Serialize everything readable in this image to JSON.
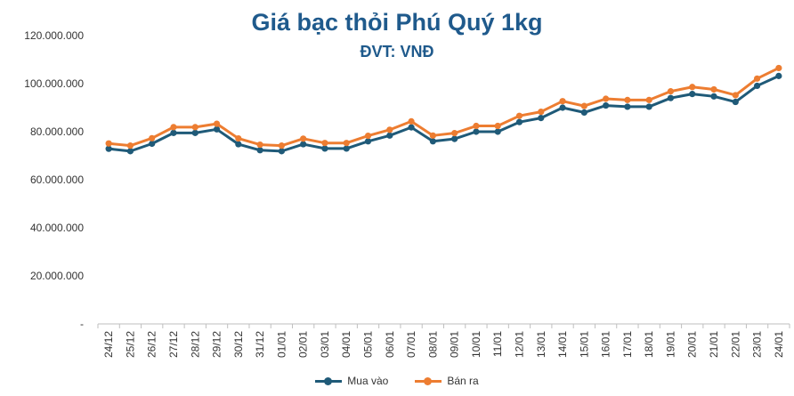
{
  "chart_data": {
    "type": "line",
    "title": "Giá bạc thỏi Phú Quý 1kg",
    "subtitle": "ĐVT: VNĐ",
    "categories": [
      "24/12",
      "25/12",
      "26/12",
      "27/12",
      "28/12",
      "29/12",
      "30/12",
      "31/12",
      "01/01",
      "02/01",
      "03/01",
      "04/01",
      "05/01",
      "06/01",
      "07/01",
      "08/01",
      "09/01",
      "10/01",
      "11/01",
      "12/01",
      "13/01",
      "14/01",
      "15/01",
      "16/01",
      "17/01",
      "18/01",
      "19/01",
      "20/01",
      "21/01",
      "22/01",
      "23/01",
      "24/01"
    ],
    "y_tick_labels": [
      "-",
      "20.000.000",
      "40.000.000",
      "60.000.000",
      "80.000.000",
      "100.000.000",
      "120.000.000"
    ],
    "ylim": [
      0,
      120000000
    ],
    "y_step": 20000000,
    "series": [
      {
        "name": "Mua vào",
        "color": "#1f5a78",
        "values": [
          72900000,
          71900000,
          75000000,
          79500000,
          79500000,
          81000000,
          74800000,
          72300000,
          71900000,
          74800000,
          73000000,
          73000000,
          76000000,
          78400000,
          81800000,
          76000000,
          77000000,
          80000000,
          80000000,
          84000000,
          85700000,
          90000000,
          88000000,
          90900000,
          90400000,
          90400000,
          94000000,
          95700000,
          94700000,
          92400000,
          99100000,
          103200000
        ]
      },
      {
        "name": "Bán ra",
        "color": "#ed7d31",
        "values": [
          75100000,
          74200000,
          77300000,
          81900000,
          81900000,
          83300000,
          77200000,
          74600000,
          74200000,
          77100000,
          75300000,
          75300000,
          78300000,
          80800000,
          84300000,
          78400000,
          79400000,
          82400000,
          82400000,
          86600000,
          88300000,
          92700000,
          90700000,
          93700000,
          93200000,
          93200000,
          96800000,
          98600000,
          97600000,
          95200000,
          102100000,
          106500000
        ]
      }
    ]
  }
}
